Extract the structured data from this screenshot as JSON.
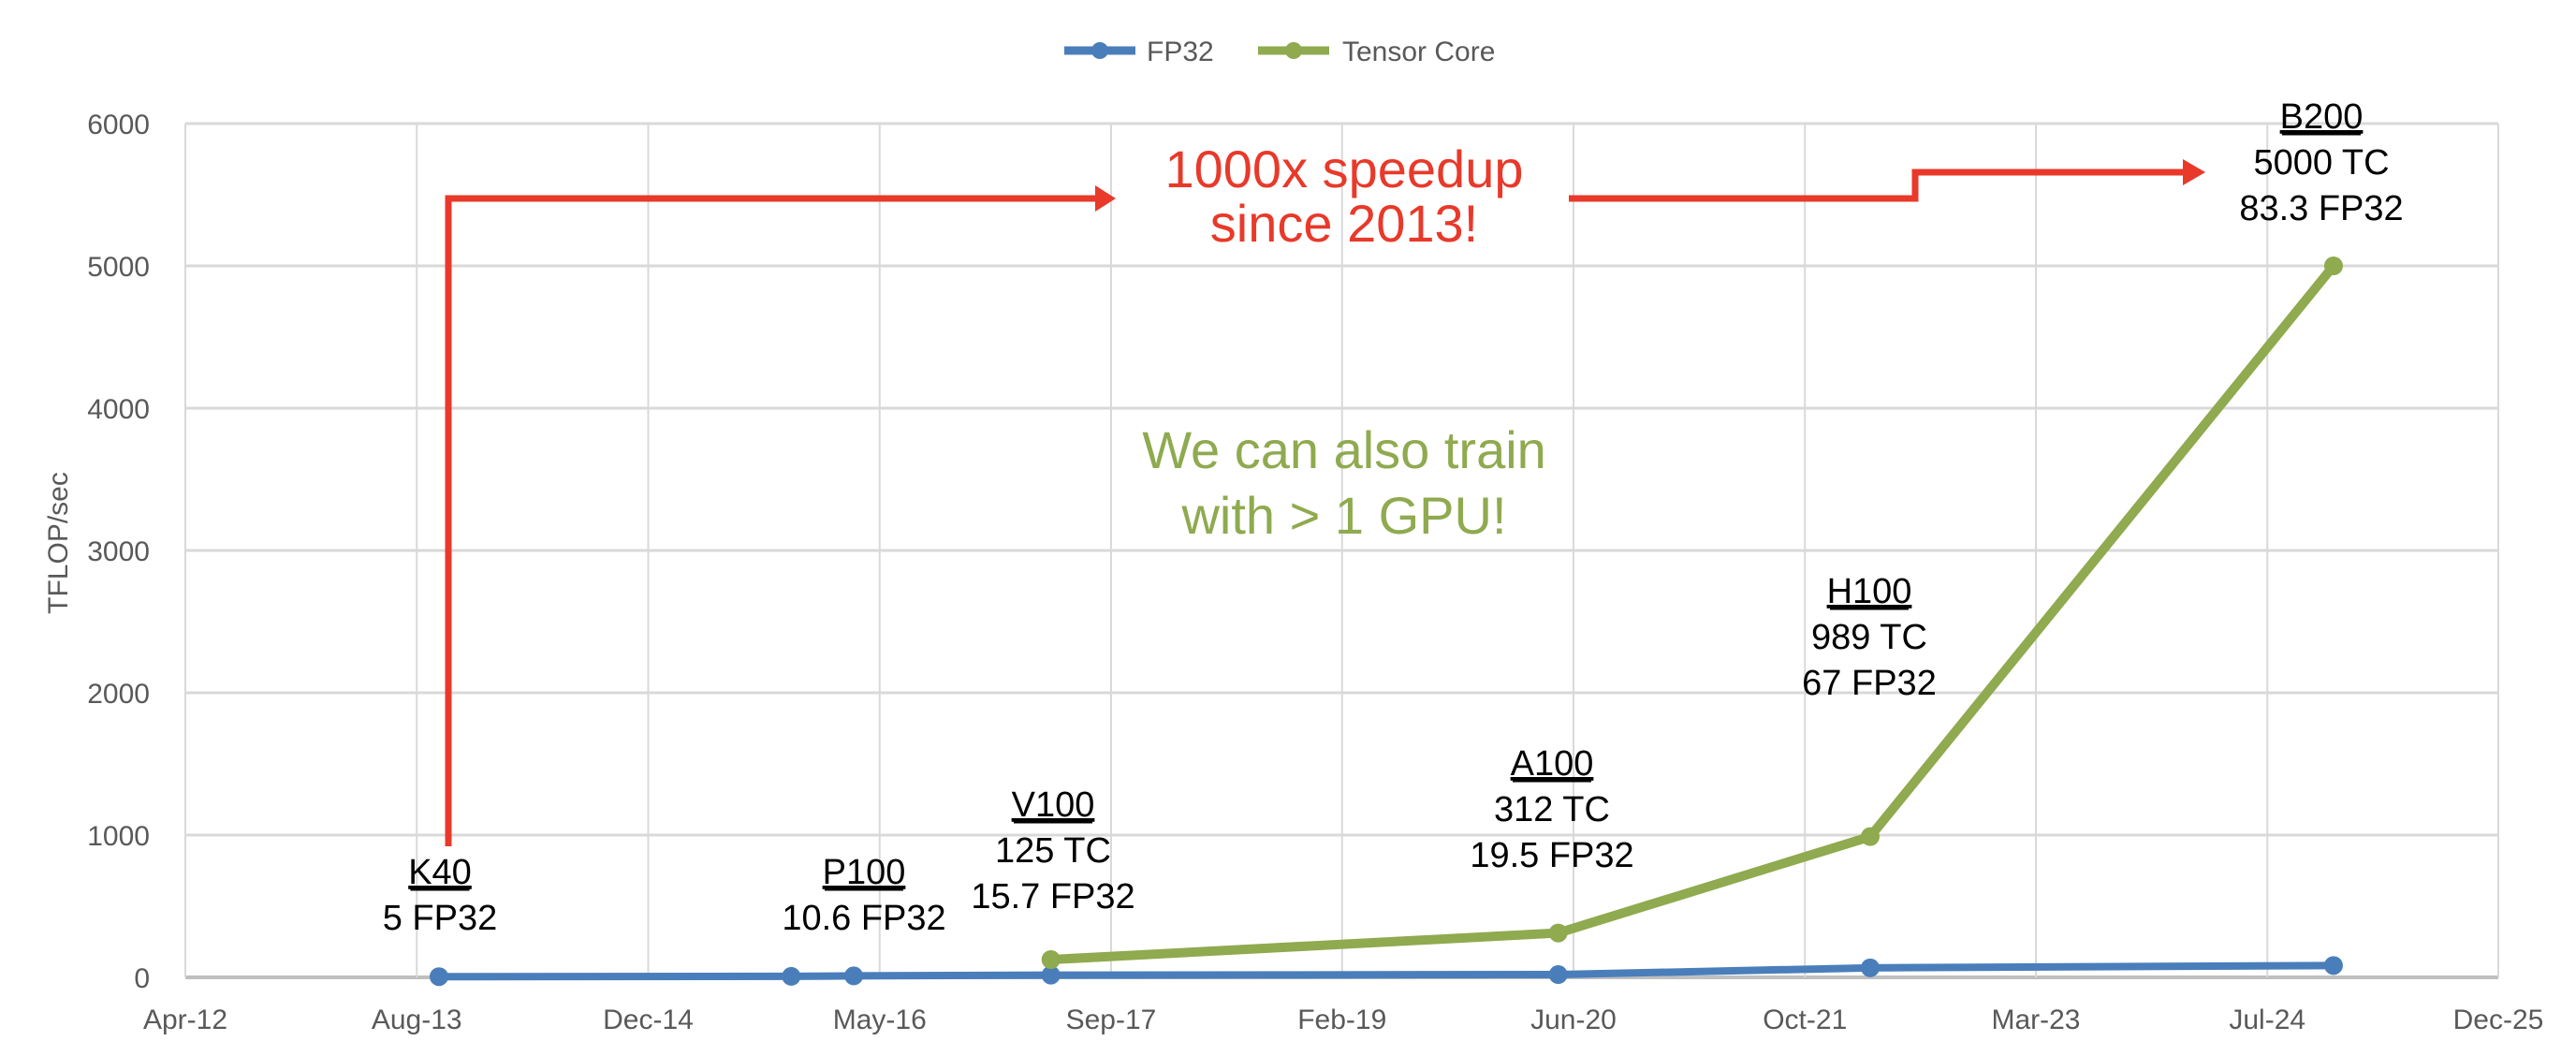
{
  "chart_data": {
    "type": "line",
    "title": "",
    "xlabel": "",
    "ylabel": "TFLOP/sec",
    "x_type": "date",
    "xlim": [
      "2012-04-01",
      "2025-12-06"
    ],
    "ylim": [
      0,
      6000
    ],
    "y_ticks": [
      0,
      1000,
      2000,
      3000,
      4000,
      5000,
      6000
    ],
    "x_ticks": [
      {
        "date": "2012-04-01",
        "label": "Apr-12"
      },
      {
        "date": "2013-08-14",
        "label": "Aug-13"
      },
      {
        "date": "2014-12-27",
        "label": "Dec-14"
      },
      {
        "date": "2016-05-10",
        "label": "May-16"
      },
      {
        "date": "2017-09-22",
        "label": "Sep-17"
      },
      {
        "date": "2019-02-03",
        "label": "Feb-19"
      },
      {
        "date": "2020-06-17",
        "label": "Jun-20"
      },
      {
        "date": "2021-10-30",
        "label": "Oct-21"
      },
      {
        "date": "2023-03-13",
        "label": "Mar-23"
      },
      {
        "date": "2024-07-25",
        "label": "Jul-24"
      },
      {
        "date": "2025-12-06",
        "label": "Dec-25"
      }
    ],
    "grid": {
      "horizontal": true,
      "vertical": true
    },
    "legend_position": "top",
    "series": [
      {
        "name": "FP32",
        "color": "#4a7ebb",
        "points": [
          {
            "x": "2013-10-01",
            "y": 5
          },
          {
            "x": "2015-11-01",
            "y": 7
          },
          {
            "x": "2016-03-15",
            "y": 10.6
          },
          {
            "x": "2017-05-15",
            "y": 15.7
          },
          {
            "x": "2020-05-15",
            "y": 19.5
          },
          {
            "x": "2022-03-20",
            "y": 67
          },
          {
            "x": "2024-12-15",
            "y": 83.3
          }
        ]
      },
      {
        "name": "Tensor Core",
        "color": "#8faa4f",
        "points": [
          {
            "x": "2017-05-15",
            "y": 125
          },
          {
            "x": "2020-05-15",
            "y": 312
          },
          {
            "x": "2022-03-20",
            "y": 989
          },
          {
            "x": "2024-12-15",
            "y": 5000
          }
        ]
      }
    ],
    "annotations": [
      {
        "name": "K40",
        "lines": [
          "5 FP32"
        ]
      },
      {
        "name": "P100",
        "lines": [
          "10.6 FP32"
        ]
      },
      {
        "name": "V100",
        "lines": [
          "125 TC",
          "15.7 FP32"
        ]
      },
      {
        "name": "A100",
        "lines": [
          "312 TC",
          "19.5 FP32"
        ]
      },
      {
        "name": "H100",
        "lines": [
          "989 TC",
          "67 FP32"
        ]
      },
      {
        "name": "B200",
        "lines": [
          "5000 TC",
          "83.3 FP32"
        ]
      }
    ],
    "callouts": {
      "speedup": [
        "1000x speedup",
        "since 2013!"
      ],
      "speedup_color": "#e8392a",
      "multi_gpu": [
        "We can also train",
        "with > 1 GPU!"
      ],
      "multi_gpu_color": "#8faa4f"
    }
  }
}
